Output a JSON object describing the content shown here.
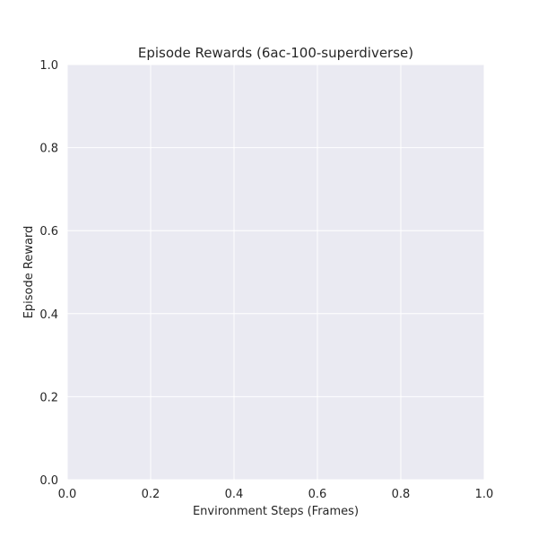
{
  "chart_data": {
    "type": "line",
    "title": "Episode Rewards (6ac-100-superdiverse)",
    "xlabel": "Environment Steps (Frames)",
    "ylabel": "Episode Reward",
    "xlim": [
      0.0,
      1.0
    ],
    "ylim": [
      0.0,
      1.0
    ],
    "xticks": [
      "0.0",
      "0.2",
      "0.4",
      "0.6",
      "0.8",
      "1.0"
    ],
    "yticks": [
      "0.0",
      "0.2",
      "0.4",
      "0.6",
      "0.8",
      "1.0"
    ],
    "series": [],
    "grid": true,
    "background_color": "#EAEAF2",
    "grid_color": "#FFFFFF"
  }
}
